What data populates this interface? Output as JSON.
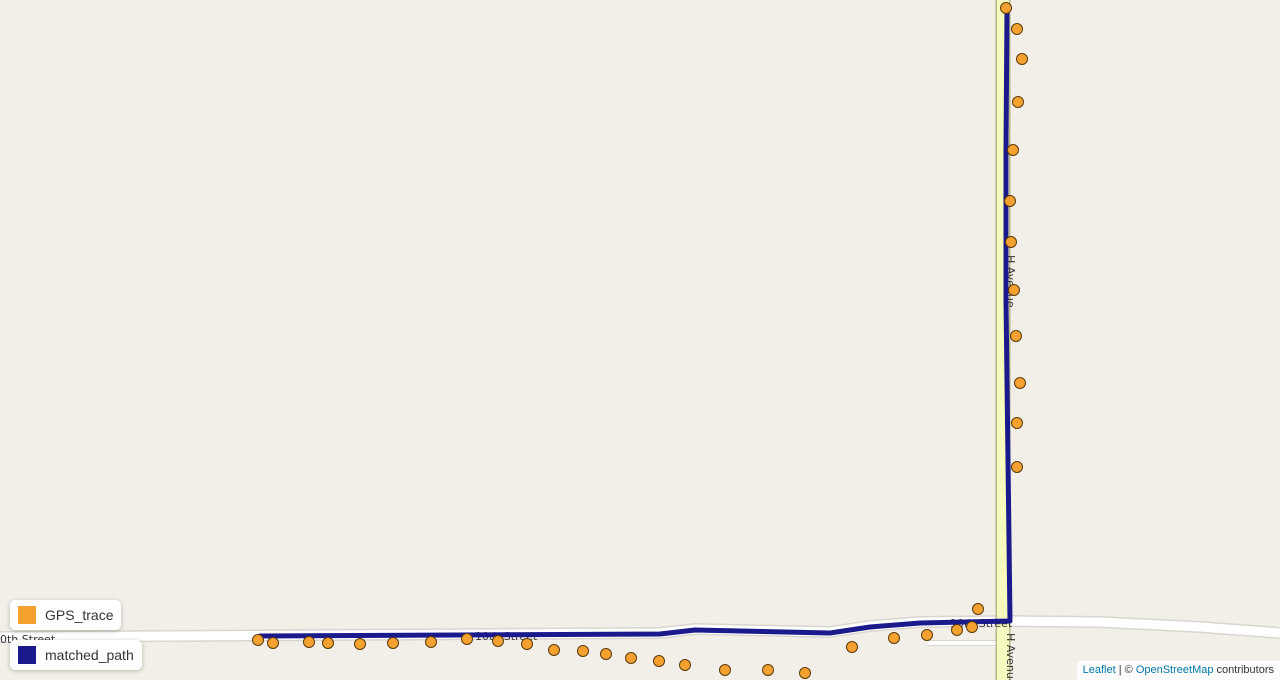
{
  "map": {
    "background": "#f2efe9",
    "road_labels": {
      "west_street": "0th Street",
      "mid_street": "10th Street",
      "east_street": "10th Street",
      "avenue_upper": "H Avenue",
      "avenue_lower": "H Avenue"
    },
    "colors": {
      "gps_trace": "#f5a130",
      "matched_path": "#1a1a8c",
      "road_major": "#f7fabf",
      "road_minor": "#ffffff"
    }
  },
  "legend": [
    {
      "label": "GPS_trace",
      "color": "#f5a130"
    },
    {
      "label": "matched_path",
      "color": "#1a1a8c"
    }
  ],
  "attribution": {
    "leaflet": "Leaflet",
    "separator": " | © ",
    "osm": "OpenStreetMap",
    "suffix": " contributors"
  }
}
